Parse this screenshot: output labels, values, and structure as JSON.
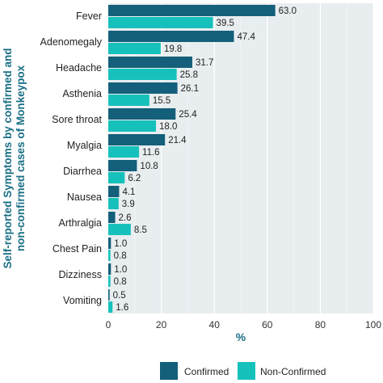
{
  "chart_data": {
    "type": "bar",
    "orientation": "horizontal",
    "categories": [
      "Fever",
      "Adenomegaly",
      "Headache",
      "Asthenia",
      "Sore throat",
      "Myalgia",
      "Diarrhea",
      "Nausea",
      "Arthralgia",
      "Chest Pain",
      "Dizziness",
      "Vomiting"
    ],
    "series": [
      {
        "name": "Confirmed",
        "color": "#145f7a",
        "values": [
          63.0,
          47.4,
          31.7,
          26.1,
          25.4,
          21.4,
          10.8,
          4.1,
          2.6,
          1.0,
          1.0,
          0.5
        ],
        "labels": [
          "63.0",
          "47.4",
          "31.7",
          "26.1",
          "25.4",
          "21.4",
          "10.8",
          "4.1",
          "2.6",
          "1.0",
          "1.0",
          "0.5"
        ]
      },
      {
        "name": "Non-Confirmed",
        "color": "#17c1bb",
        "values": [
          39.5,
          19.8,
          25.8,
          15.5,
          18.0,
          11.6,
          6.2,
          3.9,
          8.5,
          0.8,
          0.8,
          1.6
        ],
        "labels": [
          "39.5",
          "19.8",
          "25.8",
          "15.5",
          "18.0",
          "11.6",
          "6.2",
          "3.9",
          "8.5",
          "0.8",
          "0.8",
          "1.6"
        ]
      }
    ],
    "xlabel": "%",
    "ylabel_line1": "Self-reported Symptoms by confirmed and",
    "ylabel_line2": "non-confirmed cases of Monkeypox",
    "xlim": [
      0,
      100
    ],
    "xticks": [
      "0",
      "20",
      "40",
      "60",
      "80",
      "100"
    ],
    "grid": true,
    "legend_position": "bottom",
    "panel_color": "#e8edf0"
  }
}
